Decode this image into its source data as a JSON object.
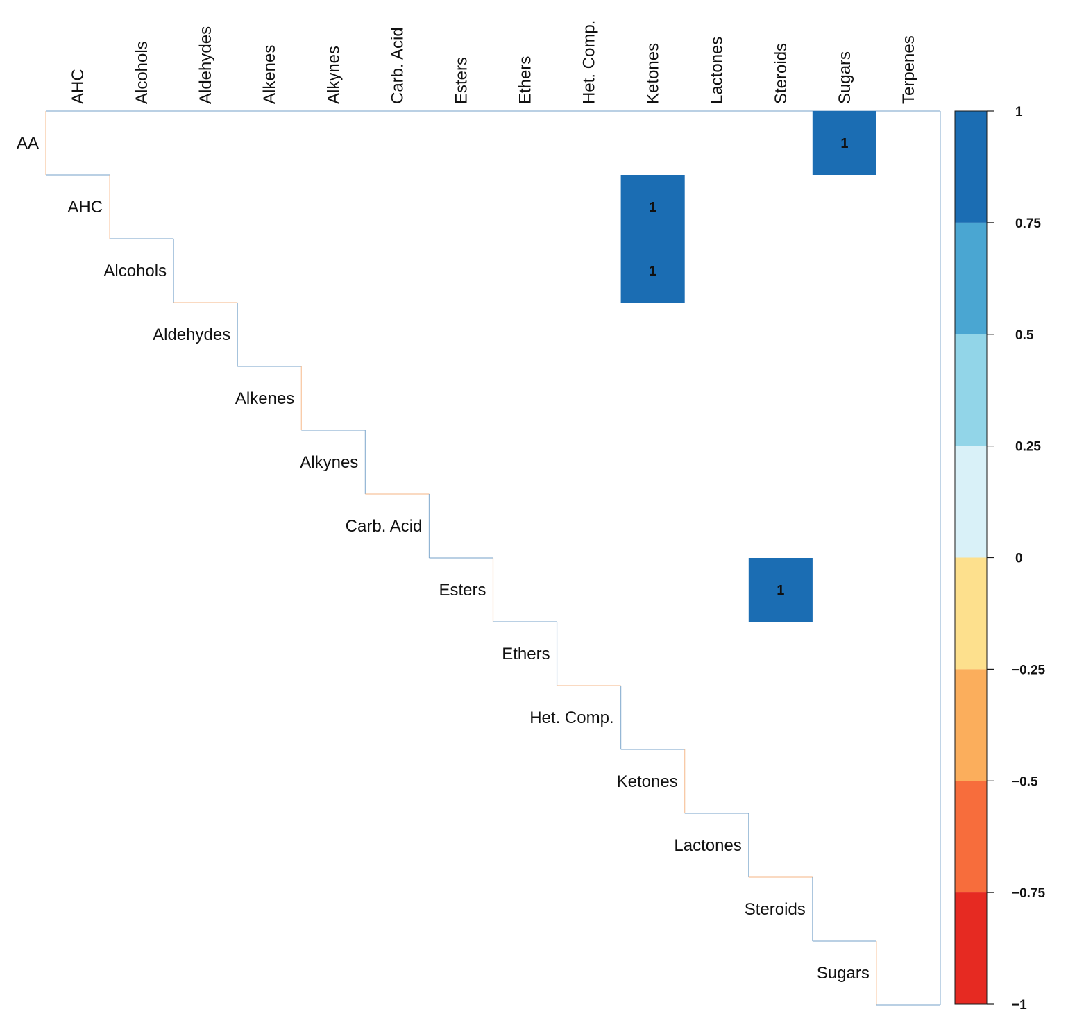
{
  "chart_data": {
    "type": "heatmap",
    "title": "",
    "variant": "upper-triangular correlation matrix",
    "row_labels": [
      "AA",
      "AHC",
      "Alcohols",
      "Aldehydes",
      "Alkenes",
      "Alkynes",
      "Carb. Acid",
      "Esters",
      "Ethers",
      "Het. Comp.",
      "Ketones",
      "Lactones",
      "Steroids",
      "Sugars"
    ],
    "col_labels": [
      "AHC",
      "Alcohols",
      "Aldehydes",
      "Alkenes",
      "Alkynes",
      "Carb. Acid",
      "Esters",
      "Ethers",
      "Het. Comp.",
      "Ketones",
      "Lactones",
      "Steroids",
      "Sugars",
      "Terpenes"
    ],
    "cells": [
      {
        "row": "AA",
        "col": "Sugars",
        "value": 1,
        "label": "1"
      },
      {
        "row": "AHC",
        "col": "Ketones",
        "value": 1,
        "label": "1"
      },
      {
        "row": "Alcohols",
        "col": "Ketones",
        "value": 1,
        "label": "1"
      },
      {
        "row": "Esters",
        "col": "Steroids",
        "value": 1,
        "label": "1"
      }
    ],
    "colorbar": {
      "range": [
        -1,
        1
      ],
      "ticks": [
        1,
        0.75,
        0.5,
        0.25,
        0,
        -0.25,
        -0.5,
        -0.75,
        -1
      ],
      "tick_labels": [
        "1",
        "0.75",
        "0.5",
        "0.25",
        "0",
        "−0.25",
        "−0.5",
        "−0.75",
        "−1"
      ],
      "bands": [
        {
          "from": 0.75,
          "to": 1,
          "color": "#1b6db3"
        },
        {
          "from": 0.5,
          "to": 0.75,
          "color": "#4aa6d2"
        },
        {
          "from": 0.25,
          "to": 0.5,
          "color": "#92d5e8"
        },
        {
          "from": 0,
          "to": 0.25,
          "color": "#d9f1f8"
        },
        {
          "from": -0.25,
          "to": 0,
          "color": "#fde08d"
        },
        {
          "from": -0.5,
          "to": -0.25,
          "color": "#fbae5c"
        },
        {
          "from": -0.75,
          "to": -0.5,
          "color": "#f76d3c"
        },
        {
          "from": -1,
          "to": -0.75,
          "color": "#e62a22"
        }
      ]
    },
    "outline_colors": {
      "positive": "#6d9cc6",
      "negative": "#f5b27e"
    }
  }
}
